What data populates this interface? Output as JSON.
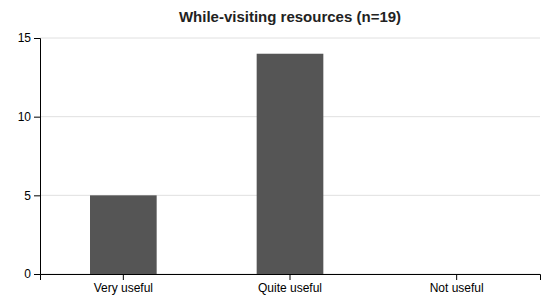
{
  "chart_data": {
    "type": "bar",
    "title": "While-visiting resources (n=19)",
    "categories": [
      "Very useful",
      "Quite useful",
      "Not useful"
    ],
    "values": [
      5,
      14,
      0
    ],
    "color": "#555555",
    "ylim": [
      0,
      15
    ],
    "yticks": [
      0,
      5,
      10,
      15
    ],
    "grid": true
  }
}
